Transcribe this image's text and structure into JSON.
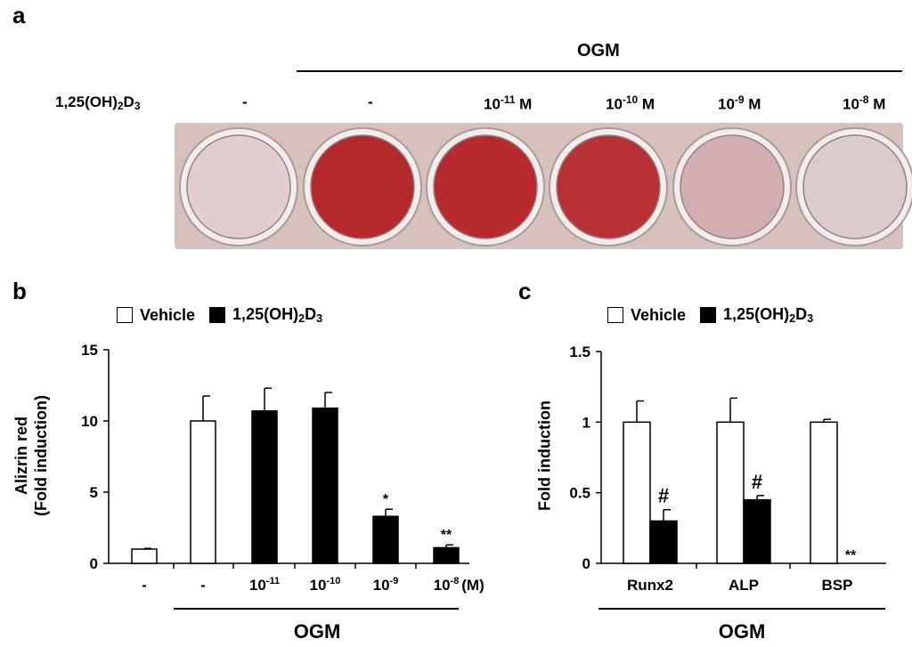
{
  "panel_a": {
    "label": "a",
    "ogm_label": "OGM",
    "row_label": "1,25(OH)2D3",
    "treatments": [
      "-",
      "-",
      "10-11 M",
      "10-10 M",
      "10-9 M",
      "10-8 M"
    ],
    "well_colors": [
      "#e2cccd",
      "#b5282c",
      "#b82a2e",
      "#b73135",
      "#d2aeb3",
      "#dccbcd"
    ],
    "plate_color": "#d8c0bd"
  },
  "panel_b": {
    "label": "b"
  },
  "panel_c": {
    "label": "c"
  },
  "legend": {
    "vehicle": "Vehicle",
    "treated": "1,25(OH)2D3"
  },
  "chart_data": [
    {
      "type": "bar",
      "panel": "b",
      "ylabel": "Alizrin red (Fold induction)",
      "ylim": [
        0,
        15
      ],
      "yticks": [
        0,
        5,
        10,
        15
      ],
      "categories": [
        "-",
        "-",
        "10-11",
        "10-10",
        "10-9",
        "10-8"
      ],
      "unit_label": "(M)",
      "group_label": "OGM",
      "bars": [
        {
          "category": "-",
          "fill": "white",
          "value": 1.0,
          "error": 0.05,
          "sig": ""
        },
        {
          "category": "-",
          "fill": "white",
          "value": 10.0,
          "error": 1.75,
          "sig": ""
        },
        {
          "category": "10-11",
          "fill": "black",
          "value": 10.7,
          "error": 1.6,
          "sig": ""
        },
        {
          "category": "10-10",
          "fill": "black",
          "value": 10.9,
          "error": 1.1,
          "sig": ""
        },
        {
          "category": "10-9",
          "fill": "black",
          "value": 3.3,
          "error": 0.5,
          "sig": "*"
        },
        {
          "category": "10-8",
          "fill": "black",
          "value": 1.1,
          "error": 0.2,
          "sig": "**"
        }
      ]
    },
    {
      "type": "bar",
      "panel": "c",
      "ylabel": "Fold induction",
      "ylim": [
        0,
        1.5
      ],
      "yticks": [
        "0",
        "0.5",
        "1",
        "1.5"
      ],
      "categories": [
        "Runx2",
        "ALP",
        "BSP"
      ],
      "group_label": "OGM",
      "series": [
        {
          "name": "Vehicle",
          "values": [
            1.0,
            1.0,
            1.0
          ],
          "errors": [
            0.15,
            0.17,
            0.02
          ],
          "sig": [
            "",
            "",
            ""
          ]
        },
        {
          "name": "1,25(OH)2D3",
          "values": [
            0.3,
            0.45,
            0.0
          ],
          "errors": [
            0.08,
            0.03,
            0.0
          ],
          "sig": [
            "#",
            "#",
            "**"
          ]
        }
      ]
    }
  ]
}
